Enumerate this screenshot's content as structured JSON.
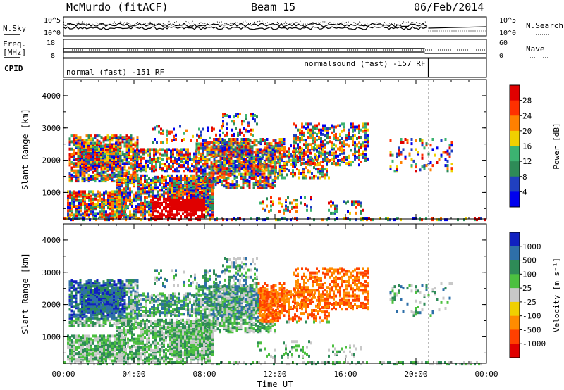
{
  "header": {
    "station": "McMurdo (fitACF)",
    "beam": "Beam 15",
    "date": "06/Feb/2014"
  },
  "noise_panel": {
    "left_label": "N.Sky",
    "left_ticks": [
      "10^5",
      "10^0"
    ],
    "right_ticks": [
      "10^5",
      "10^0"
    ],
    "right_label": "N.Search"
  },
  "freq_panel": {
    "left_label_1": "Freq.",
    "left_label_2": "[MHz]",
    "left_ticks": [
      "18",
      "8"
    ],
    "right_ticks": [
      "60",
      "0"
    ],
    "right_label": "Nave"
  },
  "cpid_panel": {
    "label": "CPID",
    "programs": [
      {
        "name": "normal (fast) -151 RF",
        "start_hour": 0,
        "end_hour": 20.7
      },
      {
        "name": "normalsound (fast) -157 RF",
        "start_hour": 20.7,
        "end_hour": 24
      }
    ]
  },
  "chart_data": [
    {
      "type": "heatmap",
      "name": "power",
      "ylabel": "Slant Range [km]",
      "yticks": [
        "4000",
        "3000",
        "2000",
        "1000"
      ],
      "ylim": [
        180,
        4500
      ],
      "colorbar_label": "Power [dB]",
      "colorbar_ticks": [
        "28",
        "24",
        "20",
        "16",
        "12",
        "8",
        "4"
      ],
      "colors": [
        "#0000ee",
        "#2040c0",
        "#2e8b57",
        "#3cb371",
        "#f0d000",
        "#ff8000",
        "#ff3000",
        "#e00000"
      ]
    },
    {
      "type": "heatmap",
      "name": "velocity",
      "ylabel": "Slant Range [km]",
      "yticks": [
        "4000",
        "3000",
        "2000",
        "1000"
      ],
      "ylim": [
        180,
        4500
      ],
      "xlabel": "Time UT",
      "xticks": [
        "00:00",
        "04:00",
        "08:00",
        "12:00",
        "16:00",
        "20:00",
        "00:00"
      ],
      "xlim": [
        0,
        24
      ],
      "colorbar_label": "Velocity [m s⁻¹]",
      "colorbar_ticks": [
        "1000",
        "500",
        "100",
        "25",
        "-25",
        "-100",
        "-500",
        "-1000"
      ],
      "colors": [
        "#1020c0",
        "#2e6fa8",
        "#2e8b57",
        "#4cc040",
        "#c8c8c8",
        "#f0d000",
        "#ff8c00",
        "#ff4000",
        "#e00000"
      ]
    }
  ]
}
